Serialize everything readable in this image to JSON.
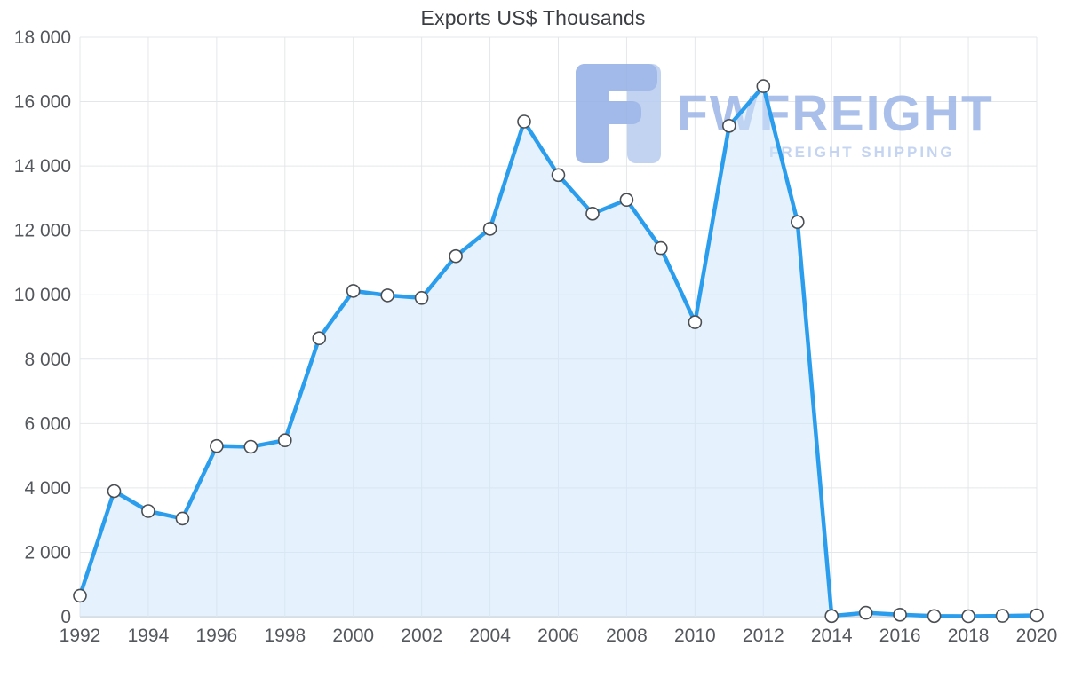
{
  "chart_data": {
    "type": "area",
    "title": "Exports US$ Thousands",
    "xlabel": "",
    "ylabel": "",
    "x": [
      1992,
      1993,
      1994,
      1995,
      1996,
      1997,
      1998,
      1999,
      2000,
      2001,
      2002,
      2003,
      2004,
      2005,
      2006,
      2007,
      2008,
      2009,
      2010,
      2011,
      2012,
      2013,
      2014,
      2015,
      2016,
      2017,
      2018,
      2019,
      2020
    ],
    "values": [
      650,
      3900,
      3280,
      3050,
      5300,
      5280,
      5480,
      8650,
      10120,
      9980,
      9900,
      11200,
      12050,
      15380,
      13720,
      12520,
      12950,
      11450,
      9150,
      15250,
      16480,
      12260,
      20,
      120,
      60,
      20,
      15,
      25,
      40
    ],
    "ylim": [
      0,
      18000
    ],
    "yticks": [
      0,
      2000,
      4000,
      6000,
      8000,
      10000,
      12000,
      14000,
      16000,
      18000
    ],
    "ytick_labels": [
      "0",
      "2 000",
      "4 000",
      "6 000",
      "8 000",
      "10 000",
      "12 000",
      "14 000",
      "16 000",
      "18 000"
    ],
    "xticks": [
      1992,
      1994,
      1996,
      1998,
      2000,
      2002,
      2004,
      2006,
      2008,
      2010,
      2012,
      2014,
      2016,
      2018,
      2020
    ],
    "xtick_labels": [
      "1992",
      "1994",
      "1996",
      "1998",
      "2000",
      "2002",
      "2004",
      "2006",
      "2008",
      "2010",
      "2012",
      "2014",
      "2016",
      "2018",
      "2020"
    ],
    "grid": true,
    "legend": "none",
    "colors": {
      "line": "#2b9ded",
      "fill": "#cfe6fa",
      "marker_fill": "#ffffff",
      "marker_stroke": "#4a4e52",
      "grid": "#e4e7ea",
      "axis_line": "#b7bcc1",
      "axis_text": "#54585d"
    }
  },
  "watermark": {
    "brand": "FWFREIGHT",
    "tagline": "FREIGHT SHIPPING",
    "brand_color": "#9fb7e7",
    "tagline_color": "#bccff0",
    "icon": "fwfreight-logo-icon",
    "icon_dark": "#96b1e6",
    "icon_light": "#b9cdf0"
  }
}
